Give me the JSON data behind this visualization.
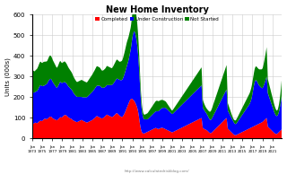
{
  "title": "New Home Inventory",
  "ylabel": "Units (000s)",
  "legend_labels": [
    "Completed",
    "Under Construction",
    "Not Started"
  ],
  "colors": [
    "#ff0000",
    "#0000ff",
    "#008000"
  ],
  "watermark": "http://www.calculatedriskblog.com/",
  "ylim": [
    0,
    600
  ],
  "yticks": [
    0,
    100,
    200,
    300,
    400,
    500,
    600
  ],
  "background_color": "#ffffff",
  "grid_color": "#cccccc",
  "start_year": 1973,
  "completed": [
    73,
    72,
    71,
    72,
    74,
    75,
    76,
    77,
    78,
    76,
    75,
    74,
    75,
    76,
    78,
    80,
    82,
    84,
    85,
    86,
    87,
    86,
    85,
    84,
    86,
    88,
    90,
    92,
    94,
    95,
    96,
    97,
    96,
    95,
    94,
    93,
    95,
    97,
    99,
    100,
    102,
    104,
    105,
    106,
    107,
    106,
    105,
    104,
    100,
    98,
    97,
    96,
    95,
    94,
    93,
    92,
    91,
    90,
    89,
    88,
    90,
    92,
    93,
    95,
    97,
    100,
    102,
    103,
    104,
    103,
    102,
    101,
    105,
    107,
    108,
    110,
    112,
    113,
    114,
    115,
    114,
    113,
    112,
    111,
    108,
    106,
    104,
    102,
    101,
    100,
    99,
    98,
    97,
    96,
    95,
    94,
    92,
    90,
    88,
    87,
    86,
    85,
    84,
    83,
    82,
    81,
    80,
    79,
    80,
    81,
    82,
    83,
    84,
    85,
    86,
    87,
    88,
    89,
    90,
    91,
    88,
    87,
    86,
    85,
    84,
    83,
    82,
    81,
    80,
    79,
    78,
    77,
    78,
    79,
    80,
    81,
    82,
    83,
    84,
    85,
    86,
    87,
    88,
    89,
    90,
    92,
    93,
    95,
    97,
    98,
    100,
    102,
    104,
    106,
    108,
    110,
    108,
    107,
    106,
    105,
    104,
    103,
    102,
    101,
    100,
    99,
    98,
    97,
    98,
    99,
    100,
    101,
    103,
    105,
    107,
    109,
    111,
    113,
    115,
    117,
    115,
    114,
    113,
    112,
    111,
    110,
    109,
    108,
    107,
    106,
    105,
    104,
    105,
    106,
    107,
    109,
    111,
    113,
    115,
    117,
    119,
    121,
    123,
    124,
    122,
    120,
    118,
    116,
    114,
    112,
    110,
    108,
    107,
    106,
    105,
    104,
    105,
    107,
    110,
    113,
    117,
    121,
    125,
    130,
    135,
    140,
    145,
    150,
    155,
    160,
    165,
    170,
    175,
    180,
    185,
    188,
    190,
    192,
    193,
    194,
    192,
    190,
    188,
    186,
    184,
    182,
    178,
    174,
    170,
    165,
    160,
    154,
    148,
    140,
    130,
    118,
    105,
    90,
    75,
    62,
    50,
    42,
    36,
    30,
    27,
    26,
    25,
    24,
    24,
    25,
    26,
    27,
    28,
    29,
    30,
    31,
    32,
    33,
    34,
    35,
    36,
    37,
    38,
    39,
    40,
    41,
    42,
    43,
    44,
    45,
    46,
    47,
    48,
    49,
    50,
    51,
    52,
    51,
    50,
    49,
    48,
    47,
    46,
    46,
    47,
    48,
    49,
    50,
    51,
    52,
    52,
    52,
    52,
    52,
    51,
    50,
    49,
    48,
    47,
    46,
    45,
    44,
    43,
    42,
    41,
    40,
    39,
    38,
    37,
    36,
    35,
    34,
    33,
    32,
    31,
    30,
    30,
    31,
    32,
    33,
    34,
    35,
    36,
    37,
    38,
    39,
    40,
    41,
    42,
    43,
    44,
    45,
    46,
    47,
    48,
    49,
    50,
    51,
    52,
    53,
    54,
    55,
    56,
    57,
    58,
    59,
    60,
    61,
    62,
    63,
    64,
    65,
    66,
    67,
    68,
    69,
    70,
    71,
    72,
    73,
    74,
    75,
    76,
    77,
    78,
    79,
    80,
    81,
    82,
    83,
    84,
    85,
    86,
    87,
    88,
    89,
    90,
    91,
    92,
    93,
    94,
    95,
    96,
    97,
    98,
    99,
    100,
    101,
    55,
    52,
    50,
    48,
    47,
    46,
    45,
    44,
    43,
    42,
    41,
    40,
    38,
    36,
    34,
    32,
    30,
    28,
    27,
    26,
    26,
    27,
    28,
    30,
    32,
    34,
    36,
    38,
    40,
    42,
    44,
    46,
    48,
    50,
    52,
    54,
    56,
    58,
    60,
    62,
    64,
    66,
    68,
    70,
    72,
    74,
    76,
    78,
    80,
    82,
    84,
    86,
    88,
    90,
    92,
    94,
    96,
    98,
    100,
    102,
    50,
    48,
    46,
    44,
    42,
    40,
    38,
    36,
    34,
    32,
    30,
    28,
    26,
    24,
    22,
    20,
    19,
    18,
    17,
    16,
    16,
    17,
    18,
    19,
    20,
    21,
    22,
    23,
    24,
    25,
    26,
    27,
    28,
    29,
    30,
    31,
    32,
    33,
    34,
    35,
    36,
    37,
    38,
    39,
    40,
    41,
    42,
    43,
    44,
    45,
    46,
    47,
    48,
    49,
    50,
    51,
    52,
    53,
    54,
    55,
    56,
    57,
    58,
    59,
    60,
    61,
    62,
    63,
    64,
    65,
    66,
    67,
    68,
    69,
    70,
    71,
    72,
    73,
    74,
    75,
    76,
    77,
    78,
    79,
    80,
    82,
    84,
    86,
    88,
    90,
    92,
    94,
    96,
    98,
    100,
    102,
    60,
    58,
    56,
    54,
    52,
    50,
    48,
    46,
    44,
    42,
    40,
    38,
    36,
    34,
    32,
    30,
    28,
    26,
    25,
    24,
    23,
    22,
    22,
    23,
    24,
    26,
    28,
    30,
    32,
    34,
    36,
    38,
    40,
    42,
    44,
    46
  ],
  "uc": [
    155,
    153,
    152,
    150,
    149,
    148,
    147,
    148,
    150,
    152,
    154,
    155,
    156,
    158,
    160,
    162,
    165,
    167,
    169,
    171,
    173,
    172,
    171,
    170,
    168,
    166,
    165,
    164,
    163,
    162,
    161,
    163,
    165,
    167,
    169,
    171,
    173,
    175,
    177,
    179,
    181,
    182,
    183,
    184,
    183,
    182,
    181,
    180,
    178,
    176,
    174,
    172,
    170,
    168,
    166,
    164,
    162,
    160,
    158,
    156,
    158,
    160,
    162,
    164,
    166,
    168,
    170,
    172,
    171,
    170,
    168,
    166,
    165,
    164,
    163,
    162,
    161,
    160,
    159,
    158,
    157,
    156,
    155,
    154,
    153,
    152,
    151,
    150,
    149,
    148,
    147,
    146,
    145,
    144,
    143,
    142,
    140,
    138,
    136,
    134,
    132,
    130,
    128,
    127,
    126,
    125,
    124,
    123,
    122,
    121,
    120,
    119,
    118,
    117,
    116,
    115,
    114,
    113,
    112,
    111,
    112,
    113,
    114,
    115,
    116,
    117,
    118,
    119,
    120,
    121,
    122,
    123,
    124,
    125,
    126,
    127,
    128,
    129,
    130,
    131,
    132,
    133,
    134,
    135,
    136,
    137,
    138,
    139,
    140,
    141,
    142,
    143,
    144,
    145,
    146,
    147,
    148,
    149,
    150,
    151,
    152,
    153,
    154,
    153,
    152,
    151,
    150,
    149,
    148,
    147,
    146,
    145,
    144,
    143,
    142,
    141,
    140,
    141,
    142,
    143,
    144,
    145,
    146,
    147,
    148,
    149,
    150,
    151,
    152,
    153,
    154,
    155,
    156,
    157,
    158,
    159,
    160,
    161,
    162,
    163,
    164,
    165,
    166,
    167,
    168,
    169,
    170,
    171,
    172,
    173,
    174,
    175,
    176,
    177,
    178,
    179,
    180,
    182,
    184,
    186,
    188,
    190,
    192,
    194,
    196,
    198,
    200,
    202,
    204,
    206,
    208,
    210,
    215,
    220,
    225,
    230,
    240,
    250,
    265,
    280,
    295,
    310,
    320,
    330,
    335,
    340,
    338,
    335,
    330,
    325,
    318,
    310,
    300,
    288,
    274,
    258,
    240,
    220,
    198,
    175,
    152,
    132,
    115,
    100,
    90,
    82,
    76,
    72,
    70,
    68,
    67,
    66,
    65,
    64,
    63,
    62,
    61,
    61,
    62,
    63,
    64,
    65,
    66,
    67,
    68,
    69,
    70,
    71,
    72,
    73,
    74,
    75,
    76,
    77,
    78,
    79,
    80,
    81,
    82,
    83,
    84,
    85,
    86,
    87,
    88,
    89,
    90,
    91,
    92,
    93,
    94,
    95,
    96,
    97,
    98,
    99,
    100,
    101,
    102,
    103,
    104,
    103,
    102,
    101,
    100,
    99,
    98,
    97,
    96,
    95,
    94,
    93,
    92,
    91,
    90,
    89,
    88,
    89,
    90,
    91,
    92,
    93,
    94,
    95,
    96,
    97,
    98,
    99,
    100,
    101,
    102,
    103,
    104,
    105,
    106,
    107,
    108,
    109,
    110,
    111,
    112,
    113,
    114,
    115,
    116,
    117,
    118,
    119,
    120,
    121,
    122,
    123,
    124,
    125,
    126,
    127,
    128,
    129,
    130,
    131,
    132,
    133,
    134,
    135,
    136,
    137,
    138,
    139,
    140,
    141,
    142,
    143,
    144,
    145,
    146,
    147,
    148,
    149,
    150,
    151,
    152,
    153,
    154,
    155,
    156,
    157,
    158,
    159,
    100,
    98,
    96,
    94,
    92,
    90,
    88,
    86,
    84,
    82,
    80,
    78,
    76,
    74,
    72,
    70,
    68,
    66,
    65,
    64,
    64,
    65,
    66,
    68,
    70,
    72,
    74,
    76,
    78,
    80,
    82,
    84,
    86,
    88,
    90,
    92,
    94,
    96,
    98,
    100,
    102,
    104,
    106,
    108,
    110,
    112,
    114,
    116,
    118,
    120,
    122,
    124,
    126,
    128,
    130,
    132,
    134,
    136,
    138,
    140,
    90,
    88,
    86,
    84,
    82,
    80,
    78,
    76,
    74,
    72,
    70,
    68,
    66,
    64,
    62,
    60,
    58,
    56,
    55,
    54,
    54,
    55,
    56,
    58,
    60,
    62,
    64,
    66,
    68,
    70,
    72,
    74,
    76,
    78,
    80,
    82,
    84,
    86,
    88,
    90,
    92,
    94,
    96,
    98,
    100,
    102,
    104,
    106,
    108,
    110,
    112,
    114,
    116,
    118,
    120,
    125,
    130,
    135,
    140,
    150,
    160,
    170,
    180,
    190,
    200,
    210,
    215,
    218,
    220,
    218,
    215,
    210,
    205,
    200,
    195,
    190,
    185,
    182,
    179,
    176,
    173,
    170,
    167,
    165,
    163,
    165,
    167,
    170,
    173,
    176,
    180,
    185,
    190,
    195,
    200,
    210,
    165,
    162,
    158,
    154,
    150,
    146,
    142,
    138,
    134,
    130,
    126,
    122,
    118,
    114,
    110,
    106,
    102,
    98,
    95,
    92,
    90,
    88,
    87,
    86,
    86,
    88,
    90,
    95,
    100,
    107,
    115,
    125,
    135,
    148,
    162,
    175
  ],
  "ns": [
    110,
    108,
    107,
    105,
    104,
    103,
    102,
    103,
    104,
    105,
    106,
    107,
    108,
    109,
    110,
    111,
    112,
    113,
    114,
    115,
    114,
    113,
    112,
    111,
    112,
    113,
    114,
    115,
    116,
    115,
    114,
    113,
    112,
    111,
    110,
    109,
    108,
    109,
    110,
    111,
    112,
    113,
    114,
    113,
    112,
    111,
    110,
    109,
    108,
    107,
    106,
    105,
    104,
    103,
    102,
    101,
    100,
    99,
    98,
    97,
    96,
    97,
    98,
    99,
    100,
    101,
    102,
    101,
    100,
    99,
    98,
    97,
    96,
    97,
    98,
    99,
    100,
    101,
    100,
    99,
    98,
    97,
    96,
    95,
    94,
    93,
    92,
    91,
    90,
    89,
    88,
    87,
    86,
    85,
    84,
    83,
    82,
    81,
    80,
    79,
    78,
    77,
    76,
    75,
    74,
    73,
    72,
    71,
    72,
    73,
    74,
    75,
    76,
    77,
    78,
    79,
    80,
    81,
    82,
    83,
    82,
    81,
    80,
    79,
    78,
    77,
    76,
    75,
    74,
    73,
    72,
    71,
    72,
    73,
    74,
    75,
    76,
    77,
    78,
    79,
    80,
    81,
    82,
    83,
    84,
    85,
    86,
    87,
    88,
    89,
    90,
    91,
    92,
    93,
    94,
    95,
    94,
    93,
    92,
    91,
    90,
    89,
    88,
    87,
    86,
    85,
    84,
    83,
    82,
    83,
    84,
    85,
    86,
    87,
    88,
    89,
    90,
    91,
    92,
    93,
    92,
    91,
    90,
    89,
    88,
    87,
    86,
    85,
    84,
    83,
    82,
    81,
    82,
    83,
    84,
    85,
    86,
    87,
    88,
    89,
    90,
    91,
    92,
    93,
    92,
    91,
    90,
    89,
    88,
    87,
    88,
    89,
    90,
    91,
    92,
    93,
    94,
    96,
    98,
    100,
    102,
    104,
    106,
    108,
    110,
    112,
    114,
    116,
    115,
    114,
    113,
    112,
    111,
    110,
    109,
    108,
    107,
    106,
    110,
    115,
    120,
    125,
    128,
    130,
    132,
    134,
    130,
    126,
    122,
    118,
    114,
    110,
    106,
    102,
    96,
    90,
    82,
    73,
    64,
    55,
    46,
    40,
    35,
    30,
    27,
    25,
    24,
    23,
    22,
    22,
    23,
    24,
    25,
    26,
    27,
    28,
    29,
    30,
    31,
    32,
    33,
    34,
    35,
    36,
    37,
    38,
    39,
    40,
    41,
    42,
    43,
    44,
    45,
    46,
    47,
    48,
    49,
    50,
    51,
    52,
    51,
    50,
    49,
    48,
    47,
    46,
    45,
    44,
    43,
    42,
    41,
    40,
    39,
    38,
    37,
    36,
    35,
    34,
    33,
    32,
    31,
    30,
    29,
    28,
    27,
    26,
    25,
    24,
    23,
    22,
    21,
    20,
    19,
    18,
    17,
    16,
    17,
    18,
    19,
    20,
    21,
    22,
    23,
    24,
    25,
    26,
    27,
    28,
    29,
    30,
    31,
    32,
    33,
    34,
    35,
    36,
    37,
    38,
    39,
    40,
    41,
    42,
    43,
    44,
    45,
    46,
    47,
    48,
    49,
    50,
    51,
    52,
    53,
    54,
    55,
    56,
    57,
    58,
    59,
    60,
    61,
    62,
    63,
    64,
    65,
    66,
    67,
    68,
    69,
    70,
    71,
    72,
    73,
    74,
    75,
    76,
    77,
    78,
    79,
    80,
    81,
    82,
    83,
    84,
    85,
    86,
    87,
    88,
    40,
    38,
    36,
    34,
    32,
    30,
    28,
    27,
    26,
    25,
    25,
    26,
    27,
    28,
    30,
    32,
    34,
    36,
    38,
    40,
    42,
    44,
    46,
    48,
    50,
    52,
    54,
    56,
    58,
    60,
    62,
    64,
    66,
    68,
    70,
    72,
    74,
    76,
    78,
    80,
    82,
    84,
    86,
    88,
    90,
    92,
    94,
    96,
    98,
    100,
    102,
    104,
    106,
    108,
    110,
    112,
    114,
    116,
    118,
    120,
    38,
    36,
    34,
    32,
    30,
    28,
    26,
    24,
    22,
    20,
    18,
    16,
    15,
    14,
    13,
    13,
    14,
    15,
    16,
    17,
    18,
    19,
    20,
    21,
    22,
    23,
    24,
    25,
    26,
    27,
    28,
    29,
    30,
    31,
    32,
    33,
    34,
    35,
    36,
    37,
    38,
    39,
    40,
    41,
    42,
    43,
    44,
    45,
    46,
    47,
    48,
    49,
    50,
    51,
    52,
    53,
    54,
    55,
    56,
    57,
    58,
    59,
    60,
    61,
    62,
    63,
    64,
    65,
    66,
    67,
    68,
    69,
    70,
    72,
    74,
    76,
    78,
    80,
    82,
    84,
    86,
    88,
    90,
    92,
    94,
    97,
    100,
    105,
    110,
    115,
    120,
    125,
    130,
    135,
    140,
    148,
    70,
    68,
    66,
    64,
    62,
    60,
    58,
    56,
    54,
    52,
    50,
    48,
    46,
    44,
    42,
    40,
    38,
    36,
    34,
    32,
    30,
    28,
    27,
    26,
    26,
    28,
    30,
    33,
    36,
    40,
    45,
    51,
    58,
    66,
    75,
    85
  ]
}
